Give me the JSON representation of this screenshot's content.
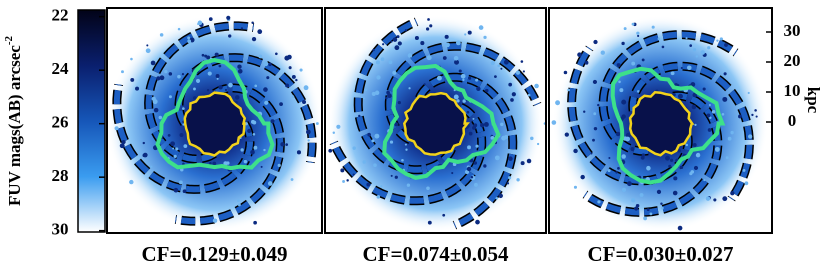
{
  "colorbar": {
    "label": "FUV mags(AB) arcsec",
    "label_exponent": "-2",
    "lim": [
      21.75,
      30.05
    ],
    "ticks": [
      22,
      24,
      26,
      28,
      30
    ]
  },
  "right_axis": {
    "label": "kpc",
    "lim": [
      -37,
      38
    ],
    "ticks": [
      0,
      10,
      20,
      30
    ]
  },
  "panels": [
    {
      "caption": "CF=0.129±0.049"
    },
    {
      "caption": "CF=0.074±0.054"
    },
    {
      "caption": "CF=0.030±0.027"
    }
  ]
}
